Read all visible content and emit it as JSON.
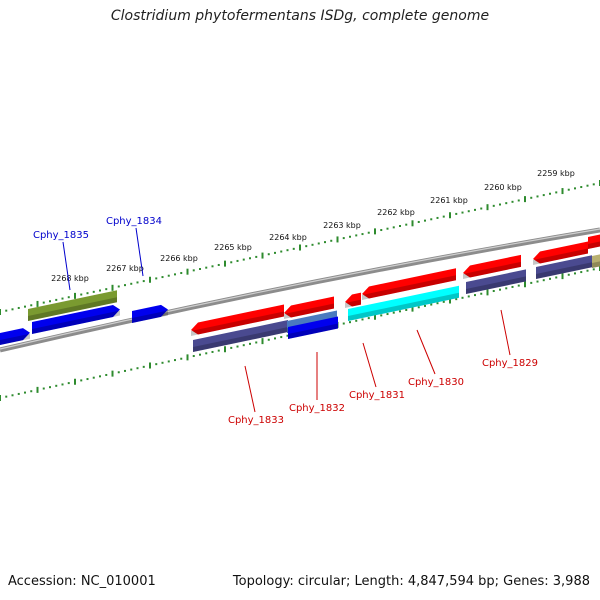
{
  "title": "Clostridium phytofermentans ISDg, complete genome",
  "footer": {
    "accession": "Accession: NC_010001",
    "summary": "Topology: circular; Length: 4,847,594 bp; Genes: 3,988"
  },
  "colors": {
    "backbone": "#8c8c8c",
    "ruler": "#2e8b2e",
    "label_top": "#0000cc",
    "label_bottom": "#cc0000",
    "gene_red": "#ff0000",
    "gene_blue": "#0000ee",
    "gene_navy": "#4a4a90",
    "gene_olive": "#7a9a30",
    "gene_cyan": "#00ffff",
    "gene_steel": "#4a7abf",
    "gene_khaki": "#b8b070"
  },
  "ruler_labels": [
    "2268 kbp",
    "2267 kbp",
    "2266 kbp",
    "2265 kbp",
    "2264 kbp",
    "2263 kbp",
    "2262 kbp",
    "2261 kbp",
    "2260 kbp",
    "2259 kbp"
  ],
  "gene_labels": {
    "top": [
      "Cphy_1835",
      "Cphy_1834"
    ],
    "bottom": [
      "Cphy_1833",
      "Cphy_1832",
      "Cphy_1831",
      "Cphy_1830",
      "Cphy_1829"
    ]
  }
}
